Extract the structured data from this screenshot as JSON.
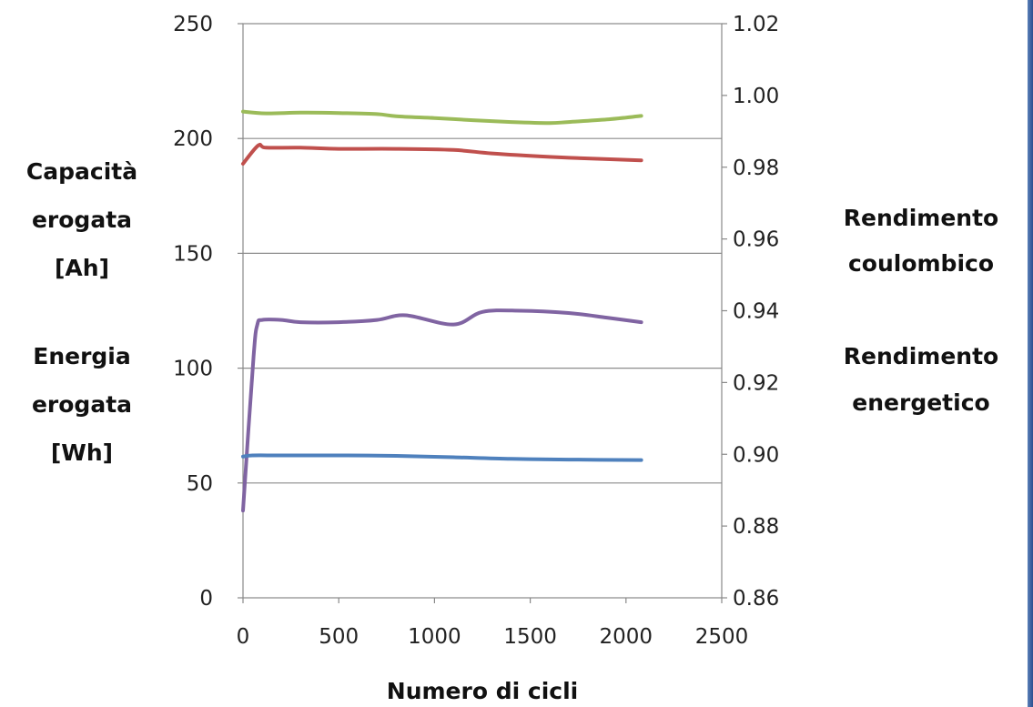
{
  "chart_data": {
    "type": "line",
    "xlabel": "Numero di cicli",
    "xlim": [
      0,
      2500
    ],
    "x_ticks": [
      "0",
      "500",
      "1000",
      "1500",
      "2000",
      "2500"
    ],
    "ylim_left": [
      0,
      250
    ],
    "y_left_ticks": [
      "0",
      "50",
      "100",
      "150",
      "200",
      "250"
    ],
    "ylim_right": [
      0.86,
      1.02
    ],
    "y_right_ticks": [
      "0.86",
      "0.88",
      "0.90",
      "0.92",
      "0.94",
      "0.96",
      "0.98",
      "1.00",
      "1.02"
    ],
    "ylabel_left": [
      "Capacità",
      "erogata",
      "[Ah]",
      "Energia",
      "erogata",
      "[Wh]"
    ],
    "ylabel_right": [
      "Rendimento",
      "coulombico",
      "Rendimento",
      "energetico"
    ],
    "grid": true,
    "series": [
      {
        "axis": "right",
        "color": "#9bbb59",
        "x": [
          0,
          120,
          300,
          500,
          700,
          800,
          1000,
          1200,
          1400,
          1600,
          1700,
          1900,
          2080
        ],
        "values": [
          0.9955,
          0.995,
          0.9952,
          0.9951,
          0.9948,
          0.9942,
          0.9937,
          0.9931,
          0.9926,
          0.9923,
          0.9926,
          0.9933,
          0.9943
        ]
      },
      {
        "axis": "left",
        "color": "#c0504d",
        "x": [
          0,
          80,
          120,
          300,
          500,
          800,
          1100,
          1300,
          1600,
          1900,
          2080
        ],
        "values": [
          189,
          197,
          196,
          196,
          195.5,
          195.5,
          195,
          193.5,
          192,
          191,
          190.5
        ]
      },
      {
        "axis": "left",
        "color": "#8064a2",
        "x": [
          0,
          55,
          75,
          100,
          200,
          300,
          500,
          700,
          850,
          1100,
          1250,
          1450,
          1700,
          1900,
          2080
        ],
        "values": [
          38,
          105,
          119,
          121,
          121,
          120,
          120,
          121,
          123,
          119,
          124.5,
          125,
          124,
          122,
          120
        ]
      },
      {
        "axis": "left",
        "color": "#4f81bd",
        "x": [
          0,
          50,
          200,
          500,
          800,
          1100,
          1400,
          1700,
          2080
        ],
        "values": [
          61.5,
          62,
          62,
          62,
          61.8,
          61.2,
          60.5,
          60.2,
          60
        ]
      }
    ]
  }
}
